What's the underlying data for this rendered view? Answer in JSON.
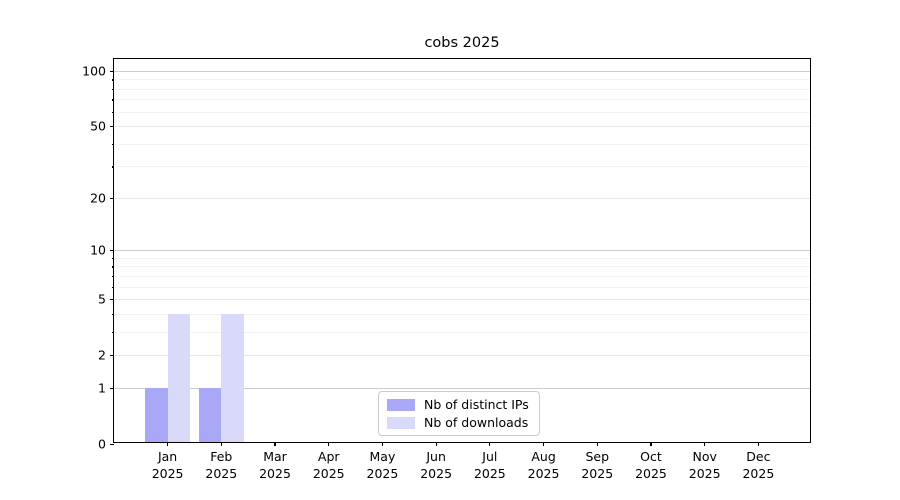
{
  "chart_data": {
    "type": "bar",
    "title": "cobs 2025",
    "categories": [
      "Jan",
      "Feb",
      "Mar",
      "Apr",
      "May",
      "Jun",
      "Jul",
      "Aug",
      "Sep",
      "Oct",
      "Nov",
      "Dec"
    ],
    "category_year": "2025",
    "series": [
      {
        "name": "Nb of distinct IPs",
        "color": "#a8a8f7",
        "values": [
          1,
          1,
          0,
          0,
          0,
          0,
          0,
          0,
          0,
          0,
          0,
          0
        ]
      },
      {
        "name": "Nb of downloads",
        "color": "#d9d9f9",
        "values": [
          4,
          4,
          0,
          0,
          0,
          0,
          0,
          0,
          0,
          0,
          0,
          0
        ]
      }
    ],
    "y_axis": {
      "scale": "log1p",
      "ticks": [
        0,
        1,
        2,
        5,
        10,
        20,
        50,
        100
      ],
      "minor_ticks": [
        3,
        4,
        6,
        7,
        8,
        9,
        30,
        40,
        60,
        70,
        80,
        90
      ],
      "top_value": 116
    },
    "xlabel": "",
    "ylabel": "",
    "grid": true,
    "legend_position": "bottom-center",
    "colors": {
      "frame": "#000000",
      "grid_major": "#cdcdcd",
      "grid_mid": "#e7e7e7",
      "grid_minor": "#f2f2f2",
      "background": "#ffffff"
    }
  }
}
